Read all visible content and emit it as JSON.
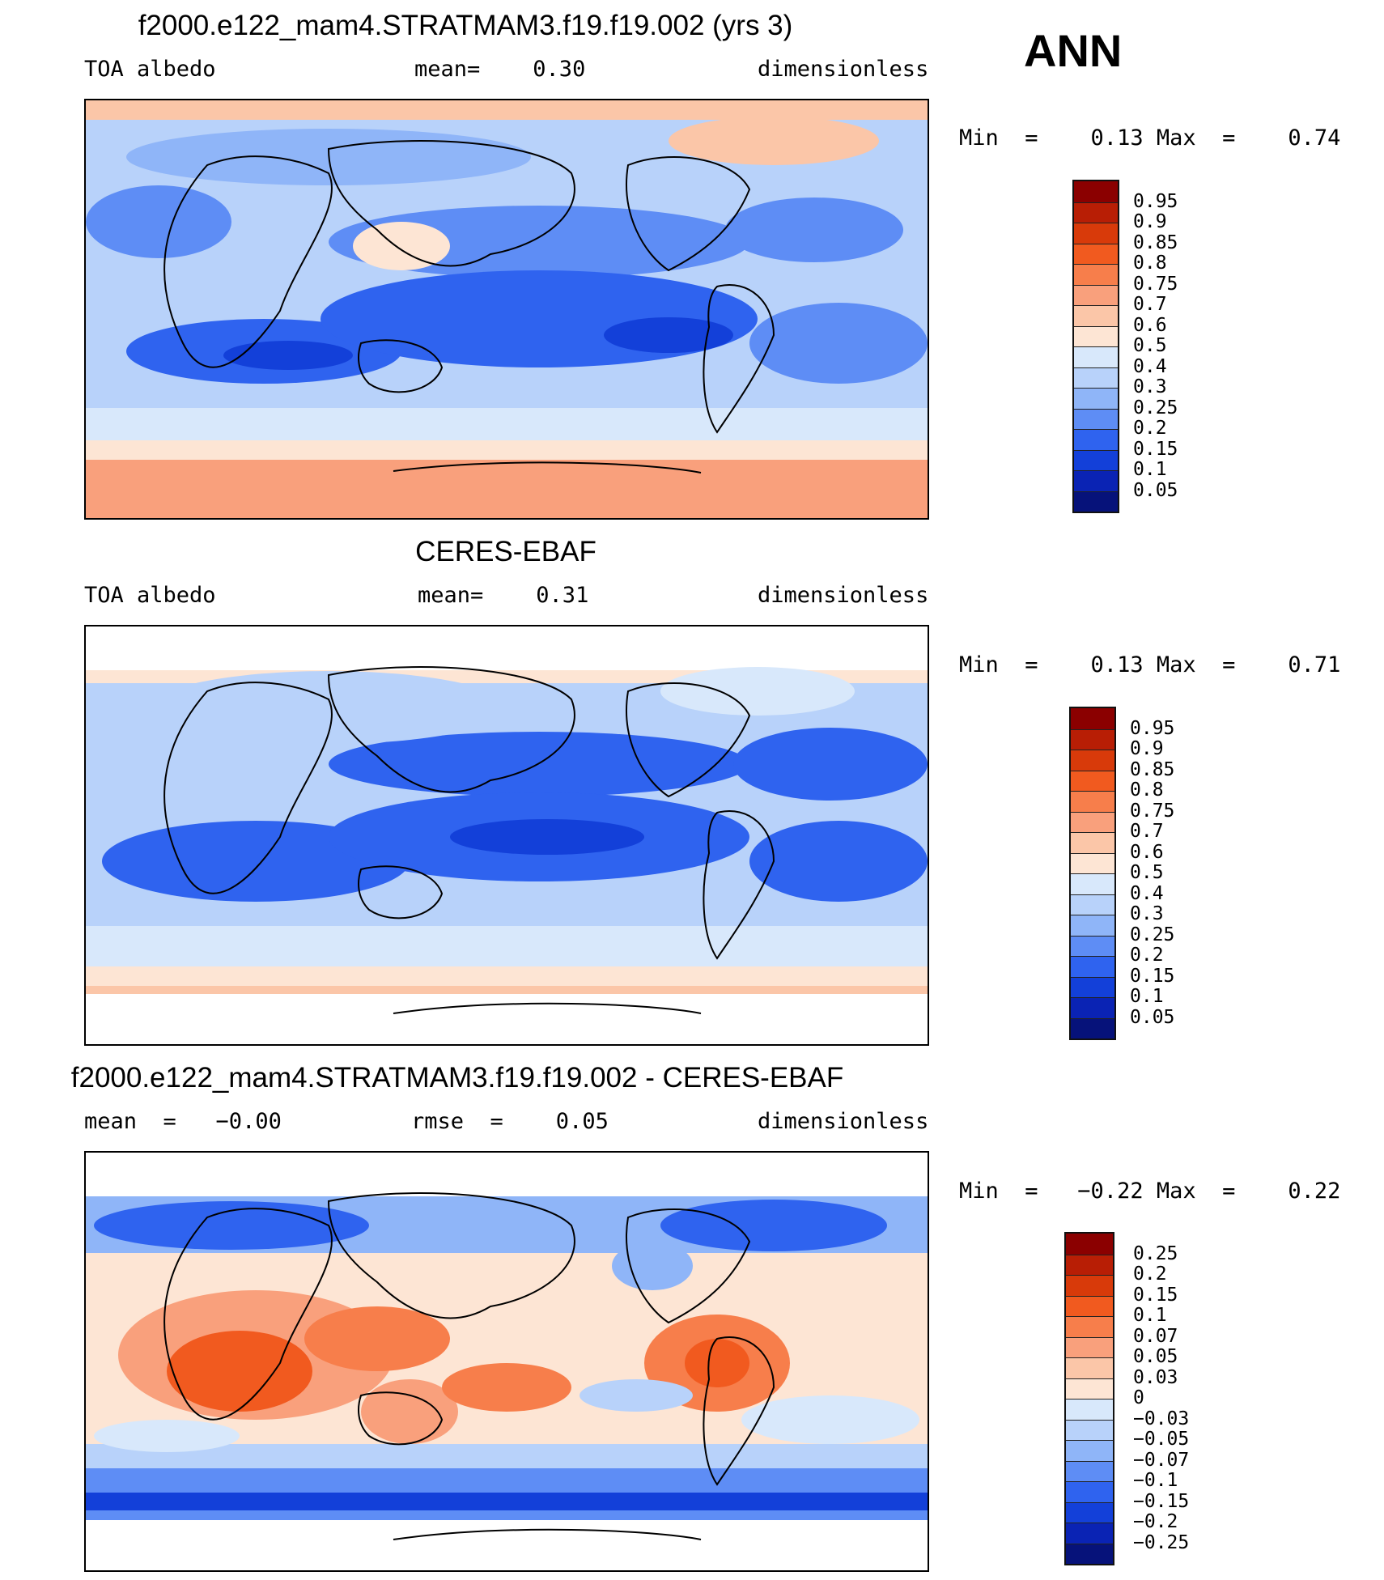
{
  "season": "ANN",
  "panels": [
    {
      "title": "f2000.e122_mam4.STRATMAM3.f19.f19.002 (yrs 3)",
      "left": "TOA  albedo",
      "mid": "mean=    0.30",
      "right": "dimensionless",
      "minmax": "Min  =    0.13 Max  =    0.74",
      "colorbar": {
        "labels": [
          "0.95",
          "0.9",
          "0.85",
          "0.8",
          "0.75",
          "0.7",
          "0.6",
          "0.5",
          "0.4",
          "0.3",
          "0.25",
          "0.2",
          "0.15",
          "0.1",
          "0.05"
        ],
        "colors": [
          "#8b0000",
          "#b81e05",
          "#d83a0a",
          "#f15a1f",
          "#f77e4b",
          "#f9a07c",
          "#fbc6a8",
          "#fde5d4",
          "#d8e8fb",
          "#b8d2fa",
          "#8fb5f8",
          "#5e8df5",
          "#2f63ef",
          "#1340d9",
          "#0a23b4",
          "#06127a"
        ]
      }
    },
    {
      "title": "CERES-EBAF",
      "left": "TOA  albedo",
      "mid": "mean=    0.31",
      "right": "dimensionless",
      "minmax": "Min  =    0.13 Max  =    0.71",
      "colorbar": {
        "labels": [
          "0.95",
          "0.9",
          "0.85",
          "0.8",
          "0.75",
          "0.7",
          "0.6",
          "0.5",
          "0.4",
          "0.3",
          "0.25",
          "0.2",
          "0.15",
          "0.1",
          "0.05"
        ],
        "colors": [
          "#8b0000",
          "#b81e05",
          "#d83a0a",
          "#f15a1f",
          "#f77e4b",
          "#f9a07c",
          "#fbc6a8",
          "#fde5d4",
          "#d8e8fb",
          "#b8d2fa",
          "#8fb5f8",
          "#5e8df5",
          "#2f63ef",
          "#1340d9",
          "#0a23b4",
          "#06127a"
        ]
      }
    },
    {
      "title": "f2000.e122_mam4.STRATMAM3.f19.f19.002 - CERES-EBAF",
      "left": "mean  =   −0.00",
      "mid": "rmse  =    0.05",
      "right": "dimensionless",
      "minmax": "Min  =   −0.22 Max  =    0.22",
      "colorbar": {
        "labels": [
          "0.25",
          "0.2",
          "0.15",
          "0.1",
          "0.07",
          "0.05",
          "0.03",
          "0",
          "−0.03",
          "−0.05",
          "−0.07",
          "−0.1",
          "−0.15",
          "−0.2",
          "−0.25"
        ],
        "colors": [
          "#8b0000",
          "#b81e05",
          "#d83a0a",
          "#f15a1f",
          "#f77e4b",
          "#f9a07c",
          "#fbc6a8",
          "#fde5d4",
          "#d8e8fb",
          "#b8d2fa",
          "#8fb5f8",
          "#5e8df5",
          "#2f63ef",
          "#1340d9",
          "#0a23b4",
          "#06127a"
        ]
      }
    }
  ]
}
